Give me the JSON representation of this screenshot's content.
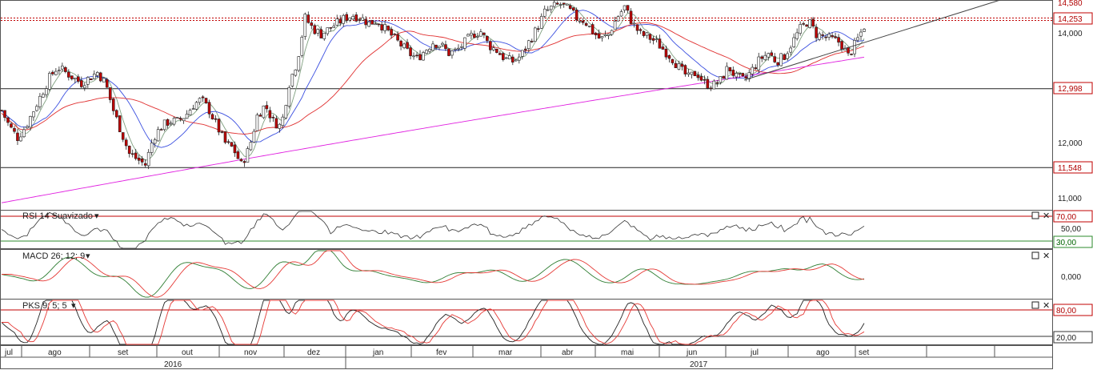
{
  "colors": {
    "up_candle": "#ffffff",
    "down_candle": "#c00000",
    "ma_fast": "#7f9f7f",
    "ma_mid": "#3b4fe0",
    "ma_slow": "#e03030",
    "ma_long": "#e020e0",
    "rsi_line": "#333333",
    "macd_line": "#2e7d32",
    "signal_line": "#e53935",
    "pks_k": "#222222",
    "pks_d": "#e53935",
    "level_line": "#c00000",
    "trend_line": "#444444"
  },
  "price_panel": {
    "y_ticks": [
      "14,000",
      "12,000",
      "11,000"
    ],
    "price_labels": [
      "14,580",
      "14,253",
      "12,998",
      "11,548"
    ],
    "horizontal_levels": [
      14.253,
      12.998,
      11.548
    ]
  },
  "rsi_panel": {
    "title": "RSI 14 Suavizado",
    "y_labels": [
      "70,00",
      "50,00",
      "30,00"
    ],
    "levels": [
      70,
      30
    ]
  },
  "macd_panel": {
    "title": "MACD 26; 12; 9",
    "y_labels": [
      "0,000"
    ]
  },
  "pks_panel": {
    "title": "PKS 9; 5; 5",
    "y_labels": [
      "80,00",
      "20,00"
    ],
    "levels": [
      80,
      20
    ]
  },
  "x_axis": {
    "months": [
      "jul",
      "ago",
      "set",
      "out",
      "nov",
      "dez",
      "jan",
      "fev",
      "mar",
      "abr",
      "mai",
      "jun",
      "jul",
      "ago",
      "set"
    ],
    "years": [
      "2016",
      "2017"
    ]
  },
  "chart_data": {
    "type": "candlestick",
    "period": "jul 2016 - set 2017",
    "y_unit": "thousands",
    "ylim": [
      10.8,
      14.6
    ],
    "close_path": [
      [
        0,
        12.6
      ],
      [
        10,
        12.3
      ],
      [
        20,
        12.1
      ],
      [
        30,
        12.3
      ],
      [
        40,
        12.6
      ],
      [
        50,
        12.9
      ],
      [
        60,
        13.2
      ],
      [
        70,
        13.4
      ],
      [
        80,
        13.3
      ],
      [
        90,
        13.2
      ],
      [
        100,
        13.1
      ],
      [
        110,
        13.2
      ],
      [
        120,
        13.3
      ],
      [
        130,
        13.1
      ],
      [
        140,
        12.6
      ],
      [
        150,
        12.2
      ],
      [
        160,
        11.8
      ],
      [
        170,
        11.7
      ],
      [
        180,
        11.6
      ],
      [
        190,
        12.1
      ],
      [
        200,
        12.3
      ],
      [
        210,
        12.4
      ],
      [
        220,
        12.4
      ],
      [
        230,
        12.5
      ],
      [
        240,
        12.7
      ],
      [
        250,
        12.8
      ],
      [
        260,
        12.6
      ],
      [
        270,
        12.3
      ],
      [
        280,
        12.0
      ],
      [
        290,
        11.9
      ],
      [
        300,
        11.6
      ],
      [
        310,
        11.9
      ],
      [
        320,
        12.5
      ],
      [
        330,
        12.7
      ],
      [
        340,
        12.4
      ],
      [
        350,
        12.3
      ],
      [
        360,
        13.1
      ],
      [
        370,
        13.5
      ],
      [
        380,
        14.3
      ],
      [
        390,
        14.1
      ],
      [
        400,
        14.0
      ],
      [
        410,
        14.1
      ],
      [
        420,
        14.2
      ],
      [
        430,
        14.3
      ],
      [
        440,
        14.35
      ],
      [
        450,
        14.3
      ],
      [
        460,
        14.2
      ],
      [
        470,
        14.25
      ],
      [
        480,
        14.1
      ],
      [
        490,
        13.95
      ],
      [
        500,
        13.8
      ],
      [
        510,
        13.65
      ],
      [
        520,
        13.55
      ],
      [
        530,
        13.7
      ],
      [
        540,
        13.85
      ],
      [
        550,
        13.8
      ],
      [
        560,
        13.65
      ],
      [
        570,
        13.7
      ],
      [
        580,
        13.85
      ],
      [
        590,
        14.0
      ],
      [
        600,
        14.05
      ],
      [
        610,
        13.8
      ],
      [
        620,
        13.7
      ],
      [
        630,
        13.55
      ],
      [
        640,
        13.5
      ],
      [
        650,
        13.6
      ],
      [
        660,
        13.85
      ],
      [
        670,
        14.1
      ],
      [
        680,
        14.4
      ],
      [
        690,
        14.5
      ],
      [
        700,
        14.55
      ],
      [
        710,
        14.45
      ],
      [
        720,
        14.3
      ],
      [
        730,
        14.25
      ],
      [
        740,
        14.05
      ],
      [
        750,
        13.9
      ],
      [
        760,
        14.0
      ],
      [
        770,
        14.3
      ],
      [
        780,
        14.5
      ],
      [
        790,
        14.2
      ],
      [
        800,
        14.0
      ],
      [
        810,
        13.95
      ],
      [
        820,
        13.85
      ],
      [
        830,
        13.7
      ],
      [
        840,
        13.55
      ],
      [
        850,
        13.35
      ],
      [
        860,
        13.2
      ],
      [
        870,
        13.3
      ],
      [
        880,
        13.1
      ],
      [
        890,
        13.05
      ],
      [
        900,
        13.15
      ],
      [
        910,
        13.4
      ],
      [
        920,
        13.2
      ],
      [
        930,
        13.15
      ],
      [
        940,
        13.35
      ],
      [
        950,
        13.55
      ],
      [
        960,
        13.65
      ],
      [
        970,
        13.5
      ],
      [
        980,
        13.6
      ],
      [
        990,
        13.85
      ],
      [
        1000,
        14.1
      ],
      [
        1010,
        14.25
      ],
      [
        1020,
        14.0
      ],
      [
        1030,
        13.95
      ],
      [
        1040,
        13.9
      ],
      [
        1050,
        13.85
      ],
      [
        1060,
        13.6
      ],
      [
        1070,
        13.85
      ],
      [
        1080,
        14.15
      ]
    ]
  }
}
